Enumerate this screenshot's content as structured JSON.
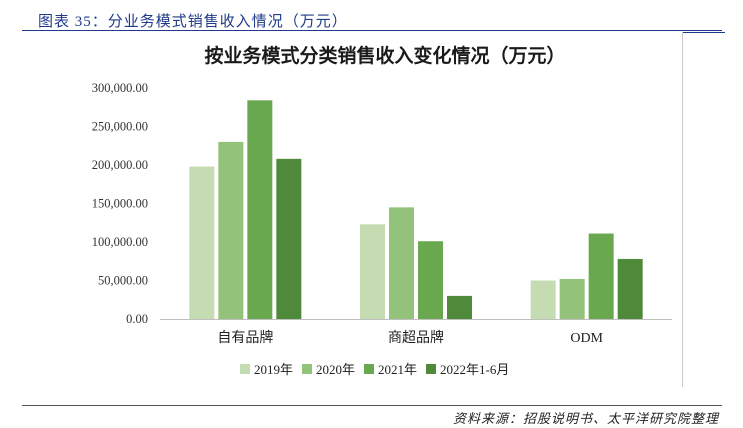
{
  "figure": {
    "caption": "图表 35：分业务模式销售收入情况（万元）",
    "source": "资料来源：招股说明书、太平洋研究院整理"
  },
  "chart_data": {
    "type": "bar",
    "title": "按业务模式分类销售收入变化情况（万元）",
    "xlabel": "",
    "ylabel": "",
    "categories": [
      "自有品牌",
      "商超品牌",
      "ODM"
    ],
    "series": [
      {
        "name": "2019年",
        "values": [
          198000,
          123000,
          50000
        ],
        "color": "#c5dcb2"
      },
      {
        "name": "2020年",
        "values": [
          230000,
          145000,
          52000
        ],
        "color": "#93c27a"
      },
      {
        "name": "2021年",
        "values": [
          284000,
          101000,
          111000
        ],
        "color": "#6aa84f"
      },
      {
        "name": "2022年1-6月",
        "values": [
          208000,
          30000,
          78000
        ],
        "color": "#4e8a3a"
      }
    ],
    "ylim": [
      0,
      300000
    ],
    "yticks": [
      "0.00",
      "50,000.00",
      "100,000.00",
      "150,000.00",
      "200,000.00",
      "250,000.00",
      "300,000.00"
    ],
    "grid": false,
    "legend": "bottom"
  }
}
